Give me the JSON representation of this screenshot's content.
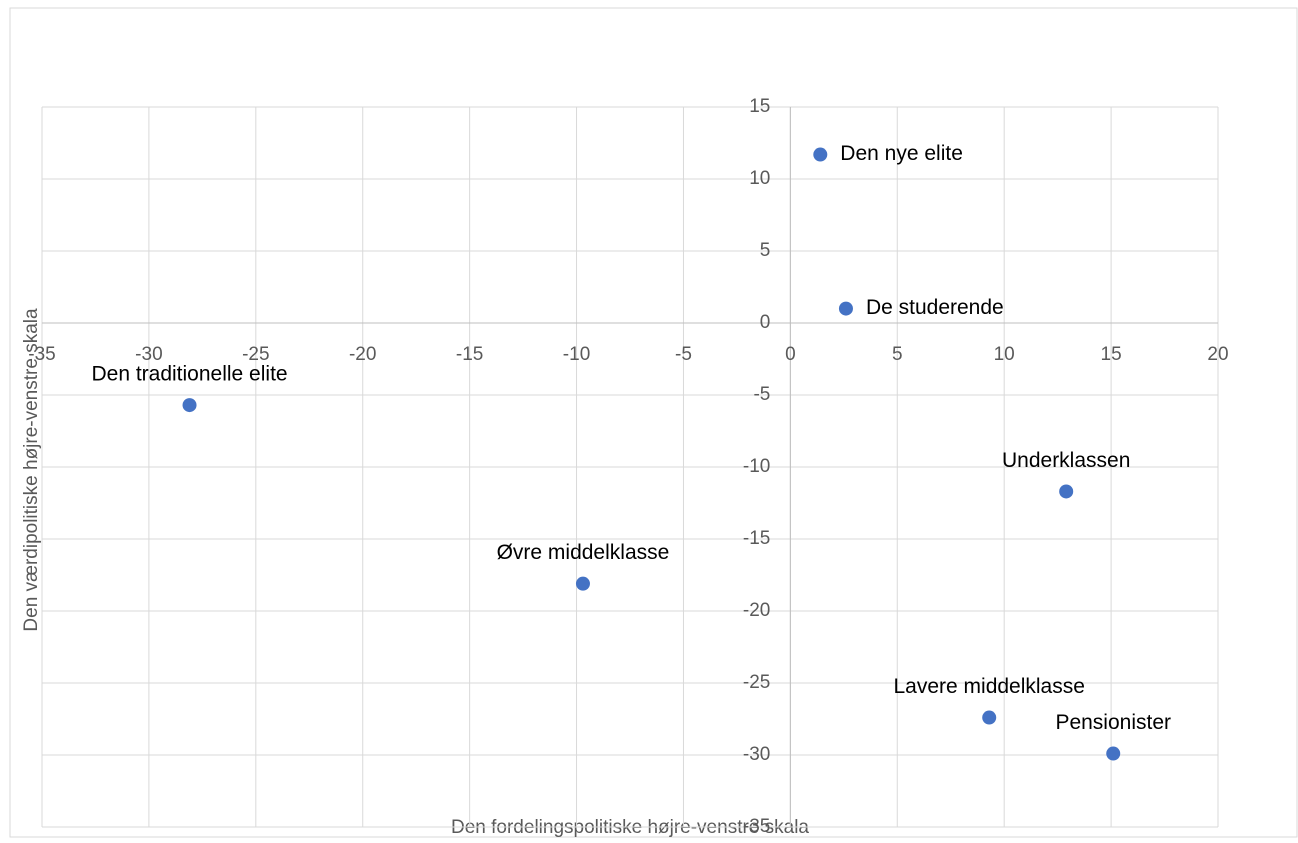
{
  "chart_data": {
    "type": "scatter",
    "x_label": "Den fordelingspolitiske højre-venstre skala",
    "y_label": "Den værdipolitiske højre-venstre skala",
    "point_labels": [
      "Den nye elite",
      "De studerende",
      "Den traditionelle elite",
      "Underklassen",
      "Øvre middelklasse",
      "Lavere middelklasse",
      "Pensionister"
    ],
    "x": [
      1.4,
      2.6,
      -28.1,
      12.9,
      -9.7,
      9.3,
      15.1
    ],
    "values": [
      11.7,
      1.0,
      -5.7,
      -11.7,
      -18.1,
      -27.4,
      -29.9
    ],
    "color": "#4472c4",
    "xlim": [
      -35,
      20
    ],
    "xticks": [
      -35,
      -30,
      -25,
      -20,
      -15,
      -10,
      -5,
      0,
      5,
      10,
      15,
      20
    ],
    "ylim": [
      -35,
      15
    ],
    "yticks": [
      -35,
      -30,
      -25,
      -20,
      -15,
      -10,
      -5,
      0,
      5,
      10,
      15
    ],
    "grid": true
  }
}
